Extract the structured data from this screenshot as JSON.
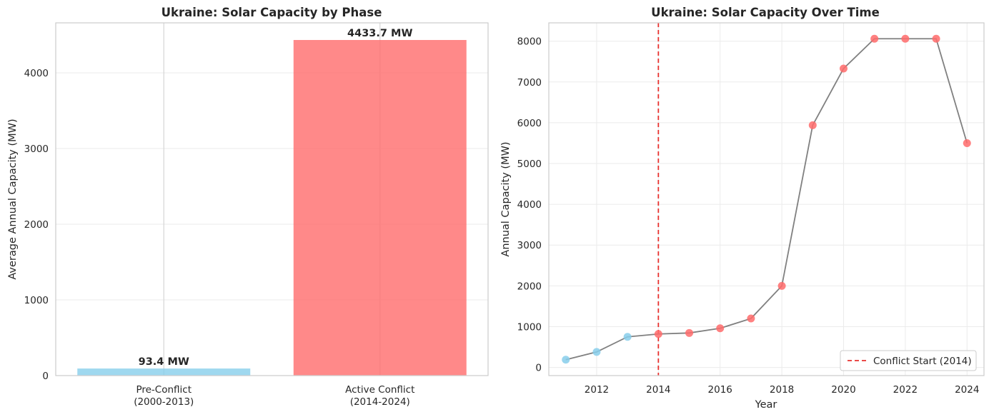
{
  "chart_data": [
    {
      "type": "bar",
      "title": "Ukraine: Solar Capacity by Phase",
      "xlabel": "",
      "ylabel": "Average Annual Capacity (MW)",
      "ylim": [
        0,
        4660
      ],
      "yticks": [
        0,
        1000,
        2000,
        3000,
        4000
      ],
      "grid": true,
      "categories": [
        {
          "line1": "Pre-Conflict",
          "line2": "(2000-2013)"
        },
        {
          "line1": "Active Conflict",
          "line2": "(2014-2024)"
        }
      ],
      "values": [
        93.4,
        4433.7
      ],
      "value_labels": [
        "93.4 MW",
        "4433.7 MW"
      ],
      "colors": [
        "#87CEEB",
        "#FF6B6B"
      ]
    },
    {
      "type": "line",
      "title": "Ukraine: Solar Capacity Over Time",
      "xlabel": "Year",
      "ylabel": "Annual Capacity (MW)",
      "xlim": [
        2010.45,
        2024.55
      ],
      "ylim": [
        -200,
        8450
      ],
      "xticks": [
        2012,
        2014,
        2016,
        2018,
        2020,
        2022,
        2024
      ],
      "yticks": [
        0,
        1000,
        2000,
        3000,
        4000,
        5000,
        6000,
        7000,
        8000
      ],
      "grid": true,
      "x": [
        2011,
        2012,
        2013,
        2014,
        2015,
        2016,
        2017,
        2018,
        2019,
        2020,
        2021,
        2022,
        2023,
        2024
      ],
      "y": [
        190,
        380,
        750,
        820,
        845,
        960,
        1200,
        2000,
        5940,
        7330,
        8060,
        8060,
        8060,
        5500
      ],
      "phase_colors": {
        "pre": "#87CEEB",
        "conflict": "#FF6B6B"
      },
      "conflict_start": 2014,
      "line_color": "#808080",
      "vline_color": "#E8312F",
      "legend": {
        "label": "Conflict Start (2014)",
        "position": "lower-right"
      }
    }
  ]
}
